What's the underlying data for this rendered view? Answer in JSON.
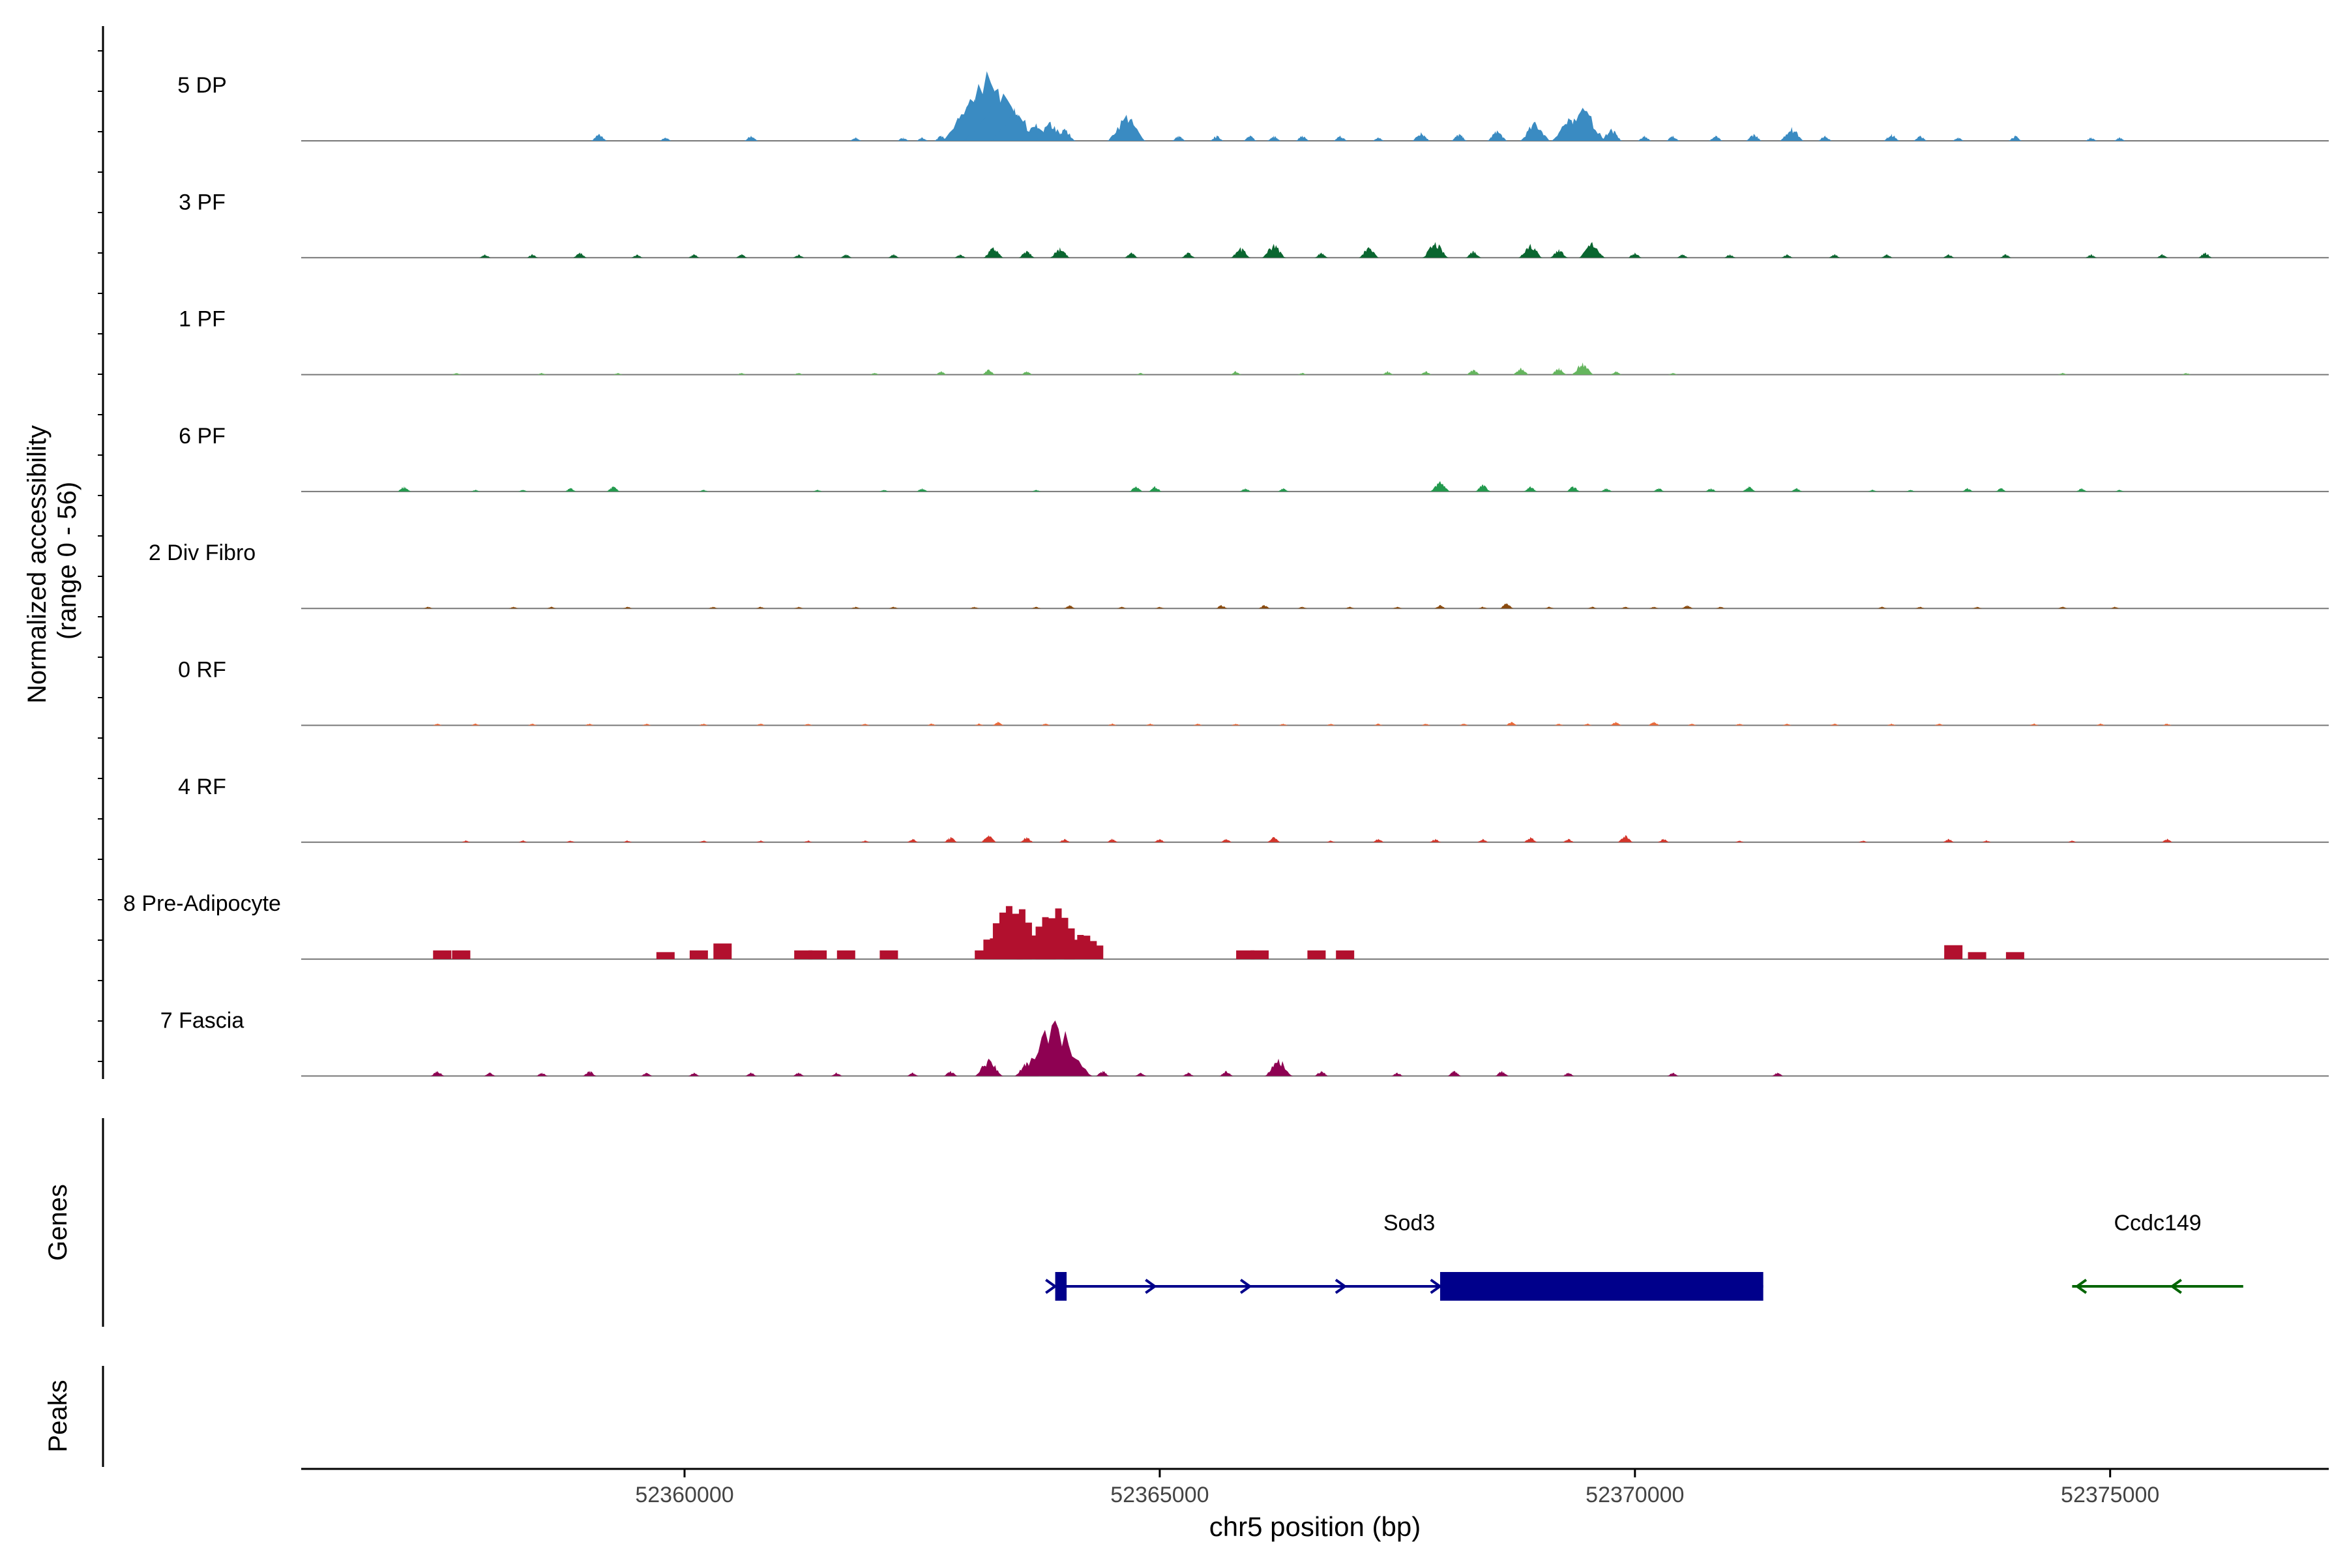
{
  "chart_data": {
    "type": "area",
    "kind": "genome coverage track",
    "y_axis_title_line1": "Normalized accessibility",
    "y_axis_title_line2": "(range 0 - 56)",
    "ylim": [
      0,
      56
    ],
    "xlabel": "chr5 position (bp)",
    "x_ticks": [
      {
        "value": 52360000,
        "label": "52360000"
      },
      {
        "value": 52365000,
        "label": "52365000"
      },
      {
        "value": 52370000,
        "label": "52370000"
      },
      {
        "value": 52375000,
        "label": "52375000"
      }
    ],
    "grid": false,
    "legend": "none",
    "tracks": [
      {
        "name": "5 DP",
        "color": "#3A8BC2",
        "peaks": [
          [
            52359100,
            4
          ],
          [
            52359800,
            2
          ],
          [
            52360700,
            3
          ],
          [
            52361800,
            2
          ],
          [
            52362300,
            2
          ],
          [
            52362500,
            2
          ],
          [
            52362700,
            3
          ],
          [
            52363050,
            24
          ],
          [
            52363180,
            40
          ],
          [
            52363300,
            30
          ],
          [
            52363470,
            19
          ],
          [
            52363700,
            10
          ],
          [
            52363850,
            11
          ],
          [
            52364000,
            7
          ],
          [
            52364650,
            15
          ],
          [
            52365200,
            3
          ],
          [
            52365600,
            3
          ],
          [
            52365950,
            3
          ],
          [
            52366200,
            3
          ],
          [
            52366500,
            3
          ],
          [
            52366900,
            3
          ],
          [
            52367300,
            2
          ],
          [
            52367750,
            5
          ],
          [
            52368150,
            4
          ],
          [
            52368550,
            6
          ],
          [
            52368950,
            11
          ],
          [
            52369300,
            13
          ],
          [
            52369450,
            19
          ],
          [
            52369750,
            7
          ],
          [
            52370100,
            3
          ],
          [
            52370400,
            3
          ],
          [
            52370850,
            3
          ],
          [
            52371250,
            4
          ],
          [
            52371650,
            8
          ],
          [
            52372000,
            3
          ],
          [
            52372700,
            4
          ],
          [
            52373000,
            3
          ],
          [
            52373400,
            2
          ],
          [
            52374000,
            3
          ],
          [
            52374800,
            2
          ],
          [
            52375100,
            2
          ]
        ]
      },
      {
        "name": "3 PF",
        "color": "#0A6630",
        "peaks": [
          [
            52357900,
            2
          ],
          [
            52358400,
            2
          ],
          [
            52358900,
            3
          ],
          [
            52359500,
            2
          ],
          [
            52360100,
            2
          ],
          [
            52360600,
            2
          ],
          [
            52361200,
            2
          ],
          [
            52361700,
            2
          ],
          [
            52362200,
            2
          ],
          [
            52362900,
            2
          ],
          [
            52363250,
            6
          ],
          [
            52363600,
            4
          ],
          [
            52363950,
            6
          ],
          [
            52364700,
            3
          ],
          [
            52365300,
            3
          ],
          [
            52365850,
            6
          ],
          [
            52366200,
            8
          ],
          [
            52366700,
            3
          ],
          [
            52367200,
            6
          ],
          [
            52367900,
            9
          ],
          [
            52368300,
            4
          ],
          [
            52368900,
            8
          ],
          [
            52369200,
            5
          ],
          [
            52369550,
            9
          ],
          [
            52370000,
            3
          ],
          [
            52370500,
            2
          ],
          [
            52371000,
            2
          ],
          [
            52371600,
            2
          ],
          [
            52372100,
            2
          ],
          [
            52372650,
            2
          ],
          [
            52373300,
            2
          ],
          [
            52373900,
            2
          ],
          [
            52374800,
            2
          ],
          [
            52375550,
            2
          ],
          [
            52376000,
            3
          ]
        ]
      },
      {
        "name": "1 PF",
        "color": "#65B55E",
        "peaks": [
          [
            52357600,
            1
          ],
          [
            52358500,
            1
          ],
          [
            52359300,
            1
          ],
          [
            52360600,
            1
          ],
          [
            52361200,
            1
          ],
          [
            52362000,
            1
          ],
          [
            52362700,
            2
          ],
          [
            52363200,
            3
          ],
          [
            52363600,
            2
          ],
          [
            52364800,
            1
          ],
          [
            52365800,
            2
          ],
          [
            52366500,
            1
          ],
          [
            52367400,
            2
          ],
          [
            52367800,
            2
          ],
          [
            52368300,
            3
          ],
          [
            52368800,
            4
          ],
          [
            52369200,
            4
          ],
          [
            52369450,
            7
          ],
          [
            52369800,
            2
          ],
          [
            52370400,
            1
          ],
          [
            52374500,
            1
          ],
          [
            52375800,
            1
          ]
        ]
      },
      {
        "name": "6 PF",
        "color": "#239A4E",
        "peaks": [
          [
            52357050,
            3
          ],
          [
            52357800,
            1
          ],
          [
            52358300,
            1
          ],
          [
            52358800,
            2
          ],
          [
            52359250,
            3
          ],
          [
            52360200,
            1
          ],
          [
            52361400,
            1
          ],
          [
            52362100,
            1
          ],
          [
            52362500,
            2
          ],
          [
            52363700,
            1
          ],
          [
            52364750,
            3
          ],
          [
            52364950,
            3
          ],
          [
            52365900,
            2
          ],
          [
            52366300,
            2
          ],
          [
            52367950,
            6
          ],
          [
            52368400,
            4
          ],
          [
            52368900,
            3
          ],
          [
            52369350,
            3
          ],
          [
            52369700,
            2
          ],
          [
            52370250,
            2
          ],
          [
            52370800,
            2
          ],
          [
            52371200,
            3
          ],
          [
            52371700,
            2
          ],
          [
            52372500,
            1
          ],
          [
            52372900,
            1
          ],
          [
            52373500,
            2
          ],
          [
            52373850,
            2
          ],
          [
            52374700,
            2
          ],
          [
            52375100,
            1
          ]
        ]
      },
      {
        "name": "2 Div Fibro",
        "color": "#8A4B0F",
        "peaks": [
          [
            52357300,
            1
          ],
          [
            52358200,
            1
          ],
          [
            52358600,
            1
          ],
          [
            52359400,
            1
          ],
          [
            52360300,
            1
          ],
          [
            52360800,
            1
          ],
          [
            52361200,
            1
          ],
          [
            52361800,
            1
          ],
          [
            52362200,
            1
          ],
          [
            52363050,
            1
          ],
          [
            52363700,
            1
          ],
          [
            52364050,
            2
          ],
          [
            52364600,
            1
          ],
          [
            52365000,
            1
          ],
          [
            52365650,
            2
          ],
          [
            52366100,
            2
          ],
          [
            52366500,
            1
          ],
          [
            52367000,
            1
          ],
          [
            52367500,
            1
          ],
          [
            52367950,
            2
          ],
          [
            52368400,
            1
          ],
          [
            52368650,
            3
          ],
          [
            52369100,
            1
          ],
          [
            52369550,
            1
          ],
          [
            52369900,
            1
          ],
          [
            52370200,
            1
          ],
          [
            52370550,
            2
          ],
          [
            52370900,
            1
          ],
          [
            52372600,
            1
          ],
          [
            52373000,
            1
          ],
          [
            52373600,
            1
          ],
          [
            52374500,
            1
          ],
          [
            52375050,
            1
          ]
        ]
      },
      {
        "name": "0 RF",
        "color": "#EB6A3A",
        "peaks": [
          [
            52357400,
            1
          ],
          [
            52357800,
            1
          ],
          [
            52358400,
            1
          ],
          [
            52359000,
            1
          ],
          [
            52359600,
            1
          ],
          [
            52360200,
            1
          ],
          [
            52360800,
            1
          ],
          [
            52361300,
            1
          ],
          [
            52361900,
            1
          ],
          [
            52362600,
            1
          ],
          [
            52363100,
            1
          ],
          [
            52363300,
            2
          ],
          [
            52363800,
            1
          ],
          [
            52364500,
            1
          ],
          [
            52364900,
            1
          ],
          [
            52365400,
            1
          ],
          [
            52365800,
            1
          ],
          [
            52366300,
            1
          ],
          [
            52366800,
            1
          ],
          [
            52367300,
            1
          ],
          [
            52367800,
            1
          ],
          [
            52368200,
            1
          ],
          [
            52368700,
            2
          ],
          [
            52369200,
            1
          ],
          [
            52369500,
            1
          ],
          [
            52369800,
            2
          ],
          [
            52370200,
            2
          ],
          [
            52370600,
            1
          ],
          [
            52371100,
            1
          ],
          [
            52371600,
            1
          ],
          [
            52372100,
            1
          ],
          [
            52372700,
            1
          ],
          [
            52373200,
            1
          ],
          [
            52374200,
            1
          ],
          [
            52374900,
            1
          ],
          [
            52375600,
            1
          ]
        ]
      },
      {
        "name": "4 RF",
        "color": "#D4352A",
        "peaks": [
          [
            52357700,
            1
          ],
          [
            52358300,
            1
          ],
          [
            52358800,
            1
          ],
          [
            52359400,
            1
          ],
          [
            52360200,
            1
          ],
          [
            52360800,
            1
          ],
          [
            52361300,
            1
          ],
          [
            52361900,
            1
          ],
          [
            52362400,
            2
          ],
          [
            52362800,
            3
          ],
          [
            52363200,
            4
          ],
          [
            52363600,
            3
          ],
          [
            52364000,
            2
          ],
          [
            52364500,
            2
          ],
          [
            52365000,
            2
          ],
          [
            52365700,
            2
          ],
          [
            52366200,
            3
          ],
          [
            52366800,
            1
          ],
          [
            52367300,
            2
          ],
          [
            52367900,
            2
          ],
          [
            52368400,
            2
          ],
          [
            52368900,
            3
          ],
          [
            52369300,
            2
          ],
          [
            52369900,
            4
          ],
          [
            52370300,
            2
          ],
          [
            52371100,
            1
          ],
          [
            52372400,
            1
          ],
          [
            52373300,
            2
          ],
          [
            52373700,
            1
          ],
          [
            52374600,
            1
          ],
          [
            52375600,
            2
          ]
        ]
      },
      {
        "name": "8 Pre-Adipocyte",
        "color": "#B2102E",
        "peaks": [
          [
            52357450,
            5
          ],
          [
            52357650,
            5
          ],
          [
            52359800,
            4
          ],
          [
            52360150,
            5
          ],
          [
            52360400,
            9
          ],
          [
            52361250,
            5
          ],
          [
            52361400,
            5
          ],
          [
            52361700,
            5
          ],
          [
            52362150,
            5
          ],
          [
            52363150,
            5
          ],
          [
            52363350,
            19
          ],
          [
            52363450,
            33
          ],
          [
            52363700,
            17
          ],
          [
            52363900,
            31
          ],
          [
            52364200,
            13
          ],
          [
            52365900,
            5
          ],
          [
            52366050,
            5
          ],
          [
            52366650,
            5
          ],
          [
            52366950,
            5
          ],
          [
            52373350,
            8
          ],
          [
            52373600,
            4
          ],
          [
            52374000,
            4
          ]
        ]
      },
      {
        "name": "7 Fascia",
        "color": "#8E0152",
        "peaks": [
          [
            52357400,
            3
          ],
          [
            52357950,
            2
          ],
          [
            52358500,
            2
          ],
          [
            52359000,
            3
          ],
          [
            52359600,
            2
          ],
          [
            52360100,
            2
          ],
          [
            52360700,
            2
          ],
          [
            52361200,
            2
          ],
          [
            52361600,
            2
          ],
          [
            52362400,
            2
          ],
          [
            52362800,
            3
          ],
          [
            52363200,
            10
          ],
          [
            52363600,
            8
          ],
          [
            52363900,
            32
          ],
          [
            52364400,
            3
          ],
          [
            52364800,
            2
          ],
          [
            52365300,
            2
          ],
          [
            52365700,
            3
          ],
          [
            52366250,
            10
          ],
          [
            52366700,
            3
          ],
          [
            52367500,
            2
          ],
          [
            52368100,
            3
          ],
          [
            52368600,
            3
          ],
          [
            52369300,
            2
          ],
          [
            52370400,
            2
          ],
          [
            52371500,
            2
          ]
        ]
      }
    ],
    "genes_label": "Genes",
    "peaks_label": "Peaks",
    "genes": [
      {
        "name": "Sod3",
        "strand": "+",
        "color": "#00008B",
        "start": 52363900,
        "end": 52371350,
        "exons": [
          [
            52363900,
            52364020
          ],
          [
            52367950,
            52371350
          ]
        ],
        "arrows": [
          52363850,
          52364900,
          52365900,
          52366900,
          52367900
        ]
      },
      {
        "name": "Ccdc149",
        "strand": "-",
        "color": "#006400",
        "start": 52374600,
        "end": 52376400,
        "exons": [],
        "arrows": [
          52374700,
          52375700
        ]
      }
    ]
  }
}
